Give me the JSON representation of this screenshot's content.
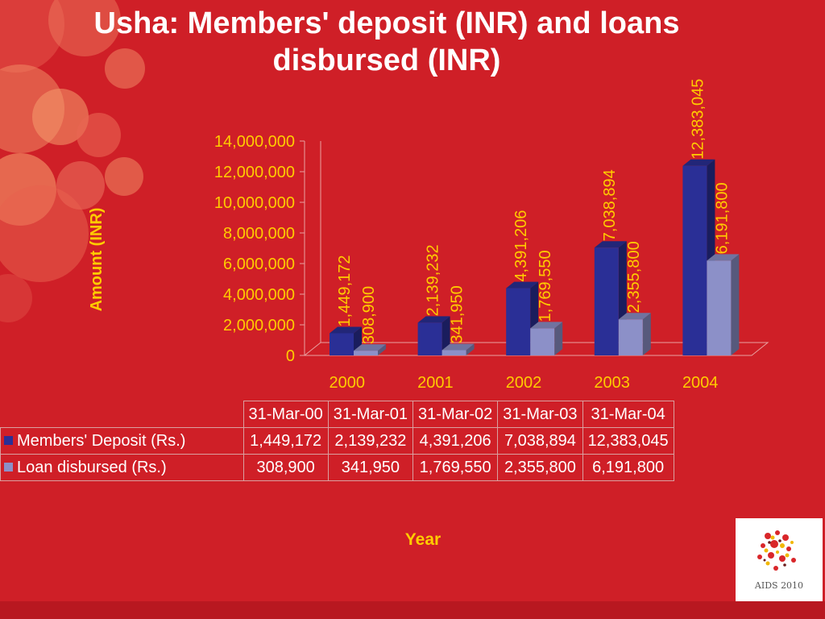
{
  "title": "Usha: Members' deposit (INR) and loans disbursed (INR)",
  "colors": {
    "background": "#cf1f27",
    "deposit_bar": "#2a2f96",
    "loan_bar": "#8c90c8",
    "axis_text": "#ffcc00",
    "table_text": "#ffffff"
  },
  "chart_data": {
    "type": "bar",
    "title": "Usha: Members' deposit (INR) and loans disbursed (INR)",
    "categories": [
      "2000",
      "2001",
      "2002",
      "2003",
      "2004"
    ],
    "series": [
      {
        "name": "Members' Deposit (Rs.)",
        "values": [
          1449172,
          2139232,
          4391206,
          7038894,
          12383045
        ]
      },
      {
        "name": "Loan disbursed (Rs.)",
        "values": [
          308900,
          341950,
          1769550,
          2355800,
          6191800
        ]
      }
    ],
    "data_labels": [
      [
        "1,449,172",
        "2,139,232",
        "4,391,206",
        "7,038,894",
        "12,383,045"
      ],
      [
        "308,900",
        "341,950",
        "1,769,550",
        "2,355,800",
        "6,191,800"
      ]
    ],
    "xlabel": "Year",
    "ylabel": "Amount (INR)",
    "ylim": [
      0,
      14000000
    ],
    "yticks": [
      "0",
      "2,000,000",
      "4,000,000",
      "6,000,000",
      "8,000,000",
      "10,000,000",
      "12,000,000",
      "14,000,000"
    ],
    "grid": false,
    "legend": "table-below"
  },
  "table": {
    "headers": [
      "31-Mar-00",
      "31-Mar-01",
      "31-Mar-02",
      "31-Mar-03",
      "31-Mar-04"
    ],
    "rows": [
      {
        "label": "Members' Deposit (Rs.)",
        "values": [
          "1,449,172",
          "2,139,232",
          "4,391,206",
          "7,038,894",
          "12,383,045"
        ]
      },
      {
        "label": "Loan disbursed (Rs.)",
        "values": [
          "308,900",
          "341,950",
          "1,769,550",
          "2,355,800",
          "6,191,800"
        ]
      }
    ]
  },
  "logo": {
    "text": "AIDS 2010",
    "small_text": "XVIII INTERNATIONAL AIDS CONFERENCE · VIENNA AUSTRIA"
  }
}
